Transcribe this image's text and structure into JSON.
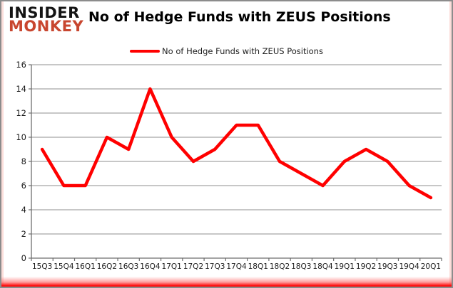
{
  "header": {
    "logo_line1": "INSIDER",
    "logo_line2": "MONKEY",
    "title": "No of Hedge Funds with ZEUS Positions"
  },
  "legend": {
    "label": "No of Hedge Funds with ZEUS Positions"
  },
  "colors": {
    "series_line": "#ff0000",
    "logo_accent": "#c8462f",
    "gridline": "#8f8f8f",
    "axis": "#6e6e6e",
    "tick_label": "#1a1a1a",
    "bottom_accent": "#ff0000"
  },
  "chart_data": {
    "type": "line",
    "title": "No of Hedge Funds with ZEUS Positions",
    "series_name": "No of Hedge Funds with ZEUS Positions",
    "categories": [
      "15Q3",
      "15Q4",
      "16Q1",
      "16Q2",
      "16Q3",
      "16Q4",
      "17Q1",
      "17Q2",
      "17Q3",
      "17Q4",
      "18Q1",
      "18Q2",
      "18Q3",
      "18Q4",
      "19Q1",
      "19Q2",
      "19Q3",
      "19Q4",
      "20Q1"
    ],
    "values": [
      9,
      6,
      6,
      10,
      9,
      14,
      10,
      8,
      9,
      11,
      11,
      8,
      7,
      6,
      8,
      9,
      8,
      6,
      5
    ],
    "xlabel": "",
    "ylabel": "",
    "ylim": [
      0,
      16
    ],
    "ytick_step": 2,
    "grid": true,
    "legend_position": "top-center"
  }
}
